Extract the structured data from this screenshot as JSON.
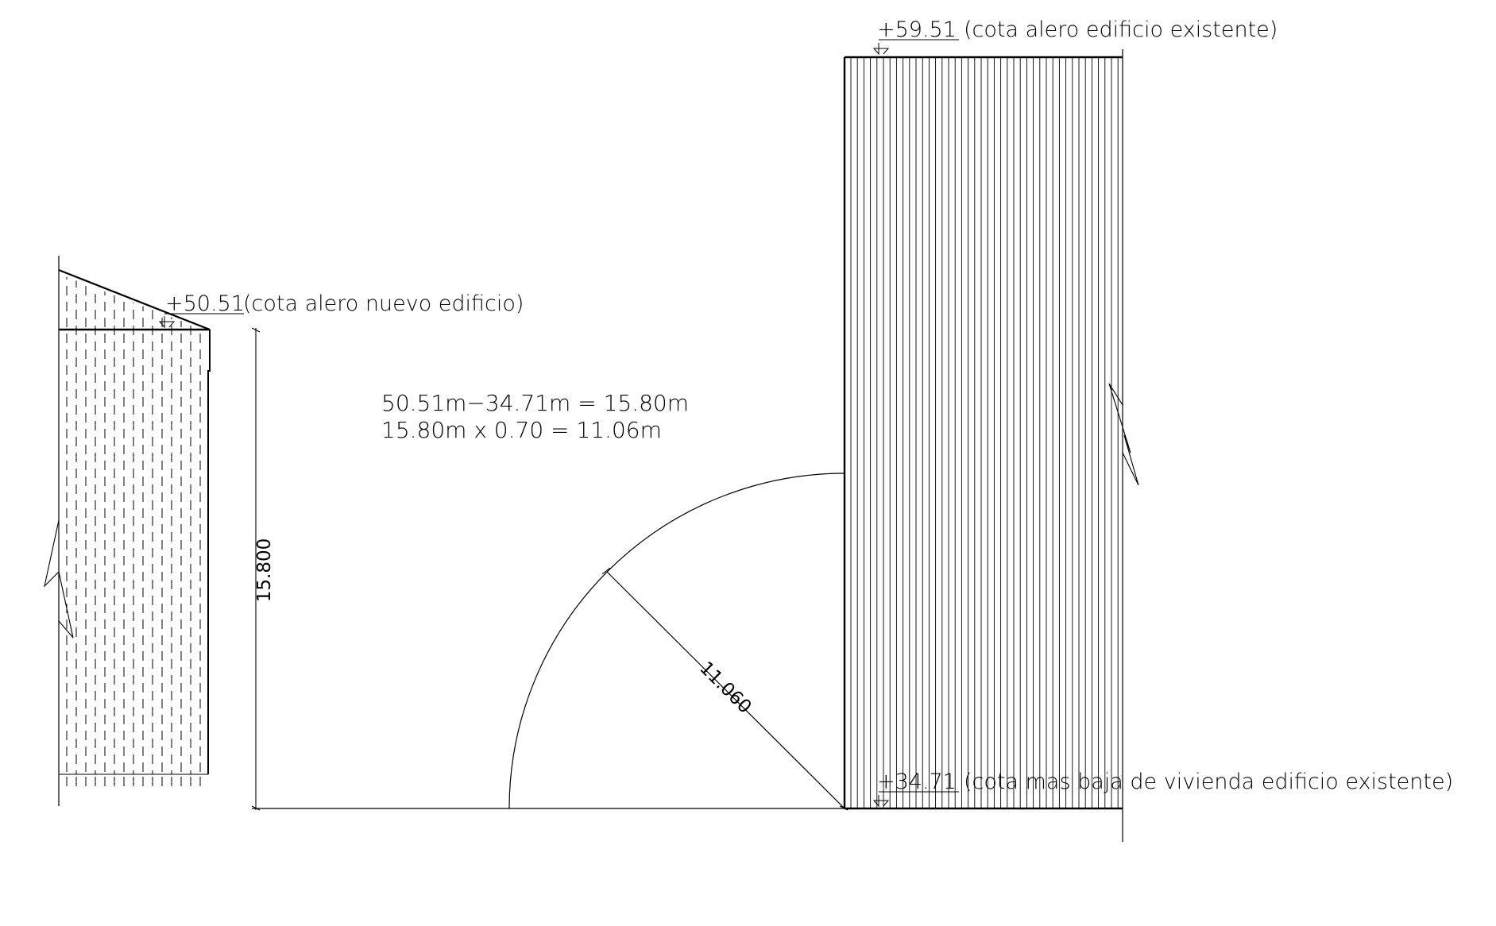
{
  "drawing": {
    "level_new_building": {
      "value": "+50.51",
      "note": "(cota alero nuevo edificio)"
    },
    "level_existing_top": {
      "value": "+59.51",
      "note": "(cota alero edificio existente)"
    },
    "level_existing_bottom": {
      "value": "+34.71",
      "note": "(cota mas baja de vivienda edificio existente)"
    },
    "calc_line_1": "50.51m−34.71m = 15.80m",
    "calc_line_2": "15.80m x 0.70 = 11.06m",
    "dim_height": "15.800",
    "dim_radius": "11.060"
  }
}
